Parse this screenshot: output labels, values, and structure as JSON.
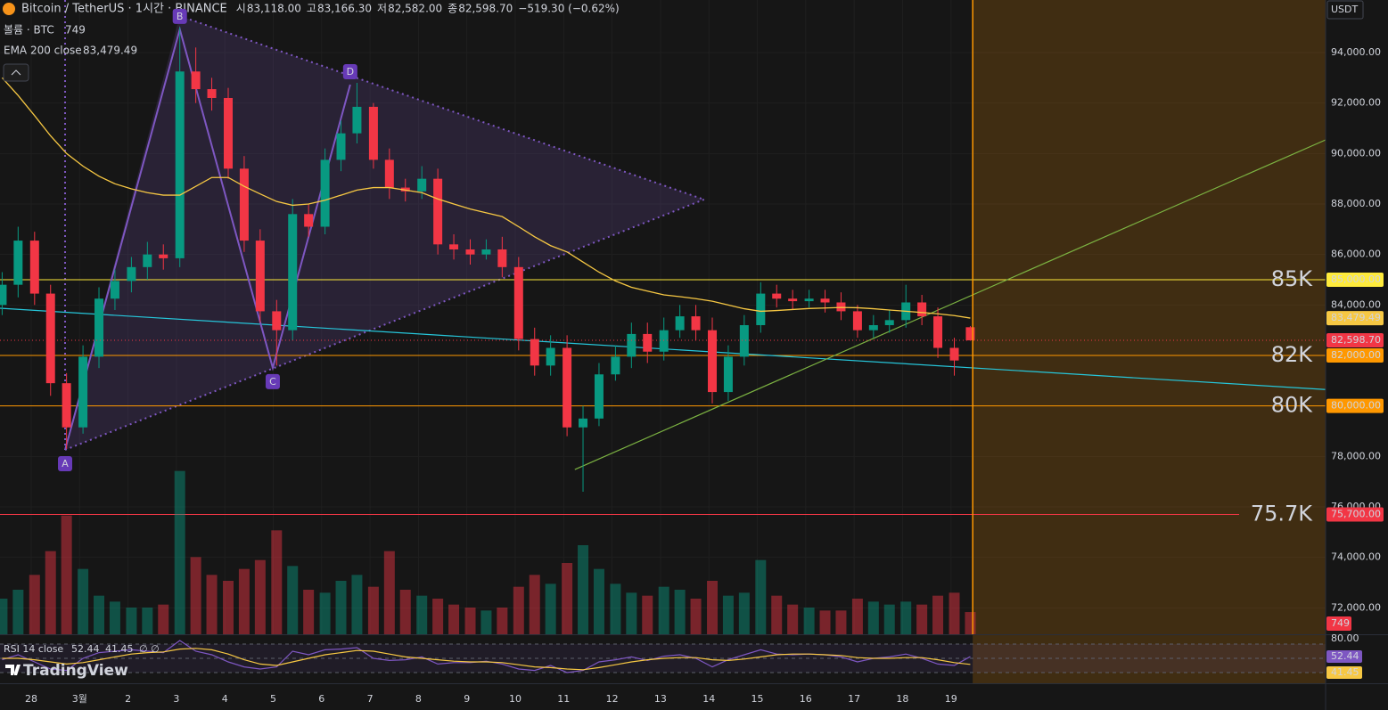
{
  "chart_data": {
    "type": "candlestick",
    "title": "Bitcoin / TetherUS · 1시간 · BINANCE",
    "ohlc_keys": [
      "시",
      "고",
      "저",
      "종"
    ],
    "ohlc_labels": [
      "83,118.00",
      "83,166.30",
      "82,582.00",
      "82,598.70"
    ],
    "change": "−519.30 (−0.62%)",
    "currency": "USDT",
    "logo": "TradingView",
    "up_color": "#089981",
    "down_color": "#f23645",
    "xlim": [
      -0.6446,
      26.74
    ],
    "ylim": [
      70953,
      96082
    ],
    "xticks": [
      {
        "value": 0,
        "label": "28"
      },
      {
        "value": 1,
        "label": "3월"
      },
      {
        "value": 2,
        "label": "2"
      },
      {
        "value": 3,
        "label": "3"
      },
      {
        "value": 4,
        "label": "4"
      },
      {
        "value": 5,
        "label": "5"
      },
      {
        "value": 6,
        "label": "6"
      },
      {
        "value": 7,
        "label": "7"
      },
      {
        "value": 8,
        "label": "8"
      },
      {
        "value": 9,
        "label": "9"
      },
      {
        "value": 10,
        "label": "10"
      },
      {
        "value": 11,
        "label": "11"
      },
      {
        "value": 12,
        "label": "12"
      },
      {
        "value": 13,
        "label": "13"
      },
      {
        "value": 14,
        "label": "14"
      },
      {
        "value": 15,
        "label": "15"
      },
      {
        "value": 16,
        "label": "16"
      },
      {
        "value": 17,
        "label": "17"
      },
      {
        "value": 18,
        "label": "18"
      },
      {
        "value": 19,
        "label": "19"
      }
    ],
    "yticks": [
      {
        "value": 72000,
        "label": "72,000.00"
      },
      {
        "value": 74000,
        "label": "74,000.00"
      },
      {
        "value": 76000,
        "label": "76,000.00"
      },
      {
        "value": 78000,
        "label": "78,000.00"
      },
      {
        "value": 80000,
        "label": "80,000.00"
      },
      {
        "value": 82000,
        "label": "82,000.00"
      },
      {
        "value": 84000,
        "label": "84,000.00"
      },
      {
        "value": 86000,
        "label": "86,000.00"
      },
      {
        "value": 88000,
        "label": "88,000.00"
      },
      {
        "value": 90000,
        "label": "90,000.00"
      },
      {
        "value": 92000,
        "label": "92,000.00"
      },
      {
        "value": 94000,
        "label": "94,000.00"
      }
    ],
    "x": [
      -0.6,
      -0.27,
      0.07,
      0.4,
      0.73,
      1.07,
      1.4,
      1.73,
      2.07,
      2.4,
      2.73,
      3.07,
      3.4,
      3.73,
      4.07,
      4.4,
      4.73,
      5.07,
      5.4,
      5.73,
      6.07,
      6.4,
      6.73,
      7.07,
      7.4,
      7.73,
      8.07,
      8.4,
      8.73,
      9.07,
      9.4,
      9.73,
      10.07,
      10.4,
      10.73,
      11.07,
      11.4,
      11.73,
      12.07,
      12.4,
      12.73,
      13.07,
      13.4,
      13.73,
      14.07,
      14.4,
      14.73,
      15.07,
      15.4,
      15.73,
      16.07,
      16.4,
      16.73,
      17.07,
      17.4,
      17.73,
      18.07,
      18.4,
      18.73,
      19.07,
      19.4
    ],
    "open": [
      84000,
      84800,
      86550,
      84450,
      80900,
      79150,
      81950,
      84250,
      84950,
      85500,
      86000,
      85850,
      93250,
      92550,
      92200,
      89400,
      86550,
      83750,
      83000,
      87600,
      87100,
      89750,
      90800,
      91850,
      89750,
      88650,
      88500,
      89000,
      86400,
      86200,
      86000,
      86200,
      85500,
      82650,
      81600,
      82300,
      79150,
      79500,
      81250,
      81950,
      82850,
      82150,
      83000,
      83550,
      83000,
      80550,
      81950,
      83200,
      84450,
      84250,
      84150,
      84250,
      84100,
      83750,
      83000,
      83200,
      83400,
      84100,
      83550,
      82300,
      83118
    ],
    "high": [
      85300,
      87100,
      86900,
      84800,
      81300,
      82400,
      84700,
      85400,
      85900,
      86500,
      86400,
      95000,
      94200,
      93000,
      92600,
      89900,
      87000,
      84200,
      88200,
      88000,
      90200,
      91300,
      92800,
      92000,
      90200,
      89000,
      89500,
      89400,
      86800,
      86600,
      86600,
      86700,
      85900,
      83100,
      82800,
      82800,
      80000,
      81700,
      82400,
      83300,
      83300,
      83500,
      84000,
      84000,
      83500,
      82400,
      83600,
      84900,
      84800,
      84600,
      84600,
      84600,
      84500,
      84000,
      83600,
      83800,
      84800,
      84400,
      83900,
      82700,
      83166.3
    ],
    "low": [
      83600,
      84300,
      84000,
      80400,
      78300,
      78900,
      81500,
      83800,
      84500,
      85000,
      85400,
      85500,
      92000,
      91700,
      89000,
      86100,
      83300,
      81600,
      82600,
      86700,
      86800,
      89300,
      90400,
      89400,
      88200,
      88100,
      88200,
      86000,
      85800,
      85600,
      85800,
      85100,
      82200,
      81200,
      81200,
      78800,
      76600,
      79200,
      81000,
      81500,
      81700,
      81800,
      82700,
      82600,
      80100,
      80200,
      81600,
      82900,
      83900,
      83800,
      83900,
      83700,
      83400,
      82700,
      82700,
      82900,
      83100,
      83200,
      81900,
      81200,
      82582
    ],
    "close": [
      84800,
      86550,
      84450,
      80900,
      79150,
      81950,
      84250,
      84950,
      85500,
      86000,
      85850,
      93250,
      92550,
      92200,
      89400,
      86550,
      83750,
      83000,
      87600,
      87100,
      89750,
      90800,
      91850,
      89750,
      88650,
      88500,
      89000,
      86400,
      86200,
      86000,
      86200,
      85500,
      82650,
      81600,
      82300,
      79150,
      79500,
      81250,
      81950,
      82850,
      82150,
      83000,
      83550,
      83000,
      80550,
      81950,
      83200,
      84450,
      84250,
      84150,
      84250,
      84100,
      83750,
      83000,
      83200,
      83400,
      84100,
      83550,
      82300,
      81800,
      82598.7
    ],
    "ema": {
      "name": "EMA 200 close",
      "color": "#f7c843",
      "value_label": "83,479.49",
      "values": [
        93000,
        92300,
        91500,
        90700,
        90000,
        89500,
        89100,
        88800,
        88600,
        88450,
        88350,
        88350,
        88700,
        89050,
        89050,
        88700,
        88400,
        88100,
        87950,
        88000,
        88150,
        88350,
        88550,
        88650,
        88650,
        88550,
        88450,
        88200,
        88000,
        87800,
        87650,
        87500,
        87100,
        86700,
        86350,
        86100,
        85700,
        85300,
        84950,
        84700,
        84550,
        84400,
        84330,
        84250,
        84150,
        84000,
        83850,
        83750,
        83780,
        83820,
        83860,
        83880,
        83900,
        83890,
        83850,
        83800,
        83750,
        83700,
        83650,
        83580,
        83479.49
      ]
    },
    "volume": {
      "name": "볼륨 · BTC",
      "ylim": [
        0,
        6000
      ],
      "values": [
        1200,
        1500,
        2000,
        2800,
        4000,
        2200,
        1300,
        1100,
        900,
        900,
        1000,
        5500,
        2600,
        2000,
        1800,
        2200,
        2500,
        3500,
        2300,
        1500,
        1400,
        1800,
        2000,
        1600,
        2800,
        1500,
        1300,
        1200,
        1000,
        900,
        800,
        900,
        1600,
        2000,
        1700,
        2400,
        3000,
        2200,
        1700,
        1400,
        1300,
        1600,
        1500,
        1200,
        1800,
        1300,
        1400,
        2500,
        1300,
        1000,
        900,
        800,
        800,
        1200,
        1100,
        1000,
        1100,
        1000,
        1300,
        1400,
        749
      ]
    },
    "levels": [
      {
        "value": 85000,
        "label": "85K",
        "axis_label": "85,000.00",
        "color": "#ffeb3b"
      },
      {
        "value": 82000,
        "label": "82K",
        "axis_label": "82,000.00",
        "color": "#ff9800"
      },
      {
        "value": 80000,
        "label": "80K",
        "axis_label": "80,000.00",
        "color": "#ff9800"
      },
      {
        "value": 75700,
        "label": "75.7K",
        "axis_label": "75,700.00",
        "color": "#f23645"
      }
    ],
    "trendlines": [
      {
        "x": [
          -0.6446,
          26.74
        ],
        "y": [
          83870,
          80650
        ],
        "color": "#26c6da"
      },
      {
        "x": [
          11.23,
          26.74
        ],
        "y": [
          77480,
          90540
        ],
        "color": "#7cb342"
      }
    ],
    "pattern": {
      "color": "#7e57c2",
      "points": [
        {
          "label": "A",
          "x": 0.7,
          "y": 78260
        },
        {
          "label": "B",
          "x": 3.07,
          "y": 94920
        },
        {
          "label": "C",
          "x": 4.99,
          "y": 81510
        },
        {
          "label": "D",
          "x": 6.59,
          "y": 92730
        }
      ],
      "triangle": {
        "x": [
          3.07,
          13.9,
          0.7
        ],
        "y": [
          95450,
          88177,
          78260
        ]
      }
    },
    "highlight_from": 19.45,
    "rsi": {
      "name": "RSI 14 close",
      "na": "∅ ∅",
      "ylim": [
        17.5,
        82.5
      ],
      "yticks": [
        {
          "value": 80,
          "label": "80.00"
        }
      ],
      "bands": [
        70,
        50,
        30
      ],
      "series": [
        {
          "color": "#7e57c2",
          "values": [
            48,
            55,
            45,
            35,
            33,
            50,
            58,
            60,
            62,
            60,
            58,
            75,
            60,
            55,
            45,
            38,
            35,
            38,
            60,
            55,
            62,
            63,
            65,
            50,
            47,
            48,
            52,
            42,
            44,
            44,
            46,
            42,
            35,
            33,
            40,
            30,
            33,
            45,
            48,
            52,
            47,
            53,
            55,
            50,
            38,
            48,
            55,
            62,
            56,
            55,
            56,
            55,
            52,
            45,
            50,
            52,
            56,
            50,
            42,
            40,
            52.44
          ]
        },
        {
          "color": "#f7c843",
          "values": [
            50,
            50,
            48,
            45,
            42,
            44,
            48,
            52,
            56,
            58,
            59,
            63,
            64,
            62,
            56,
            48,
            42,
            40,
            45,
            50,
            55,
            58,
            61,
            60,
            56,
            52,
            50,
            48,
            46,
            45,
            45,
            44,
            41,
            38,
            37,
            35,
            34,
            37,
            41,
            45,
            48,
            50,
            51,
            51,
            48,
            47,
            49,
            52,
            55,
            56,
            56,
            55,
            54,
            51,
            50,
            50,
            51,
            51,
            48,
            44,
            41.45
          ]
        }
      ]
    }
  }
}
